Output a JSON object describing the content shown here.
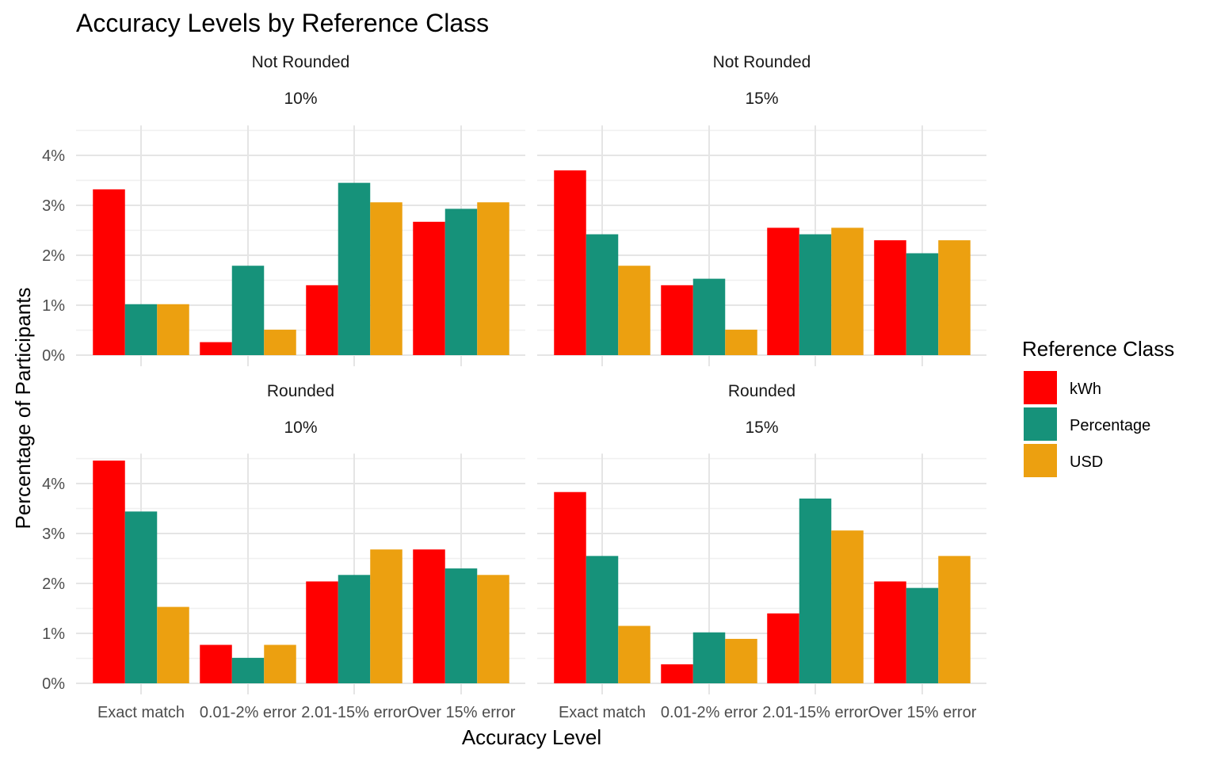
{
  "chart_data": {
    "type": "bar",
    "title": "Accuracy Levels by Reference Class",
    "xlabel": "Accuracy Level",
    "ylabel": "Percentage of Participants",
    "categories": [
      "Exact match",
      "0.01-2% error",
      "2.01-15% error",
      "Over 15% error"
    ],
    "y_ticks": [
      "0%",
      "1%",
      "2%",
      "3%",
      "4%"
    ],
    "ylim": [
      0,
      4.6
    ],
    "grid": true,
    "legend": {
      "title": "Reference Class",
      "position": "right",
      "entries": [
        "kWh",
        "Percentage",
        "USD"
      ]
    },
    "series_colors": [
      "#ff0000",
      "#16927a",
      "#eca010"
    ],
    "panels": [
      {
        "row_label": "Not Rounded",
        "col_label": "10%",
        "series": [
          {
            "name": "kWh",
            "values": [
              3.32,
              0.26,
              1.4,
              2.67
            ]
          },
          {
            "name": "Percentage",
            "values": [
              1.02,
              1.79,
              3.45,
              2.93
            ]
          },
          {
            "name": "USD",
            "values": [
              1.02,
              0.51,
              3.06,
              3.06
            ]
          }
        ]
      },
      {
        "row_label": "Not Rounded",
        "col_label": "15%",
        "series": [
          {
            "name": "kWh",
            "values": [
              3.7,
              1.4,
              2.55,
              2.3
            ]
          },
          {
            "name": "Percentage",
            "values": [
              2.42,
              1.53,
              2.42,
              2.04
            ]
          },
          {
            "name": "USD",
            "values": [
              1.79,
              0.51,
              2.55,
              2.3
            ]
          }
        ]
      },
      {
        "row_label": "Rounded",
        "col_label": "10%",
        "series": [
          {
            "name": "kWh",
            "values": [
              4.46,
              0.77,
              2.04,
              2.68
            ]
          },
          {
            "name": "Percentage",
            "values": [
              3.44,
              0.51,
              2.17,
              2.3
            ]
          },
          {
            "name": "USD",
            "values": [
              1.53,
              0.77,
              2.68,
              2.17
            ]
          }
        ]
      },
      {
        "row_label": "Rounded",
        "col_label": "15%",
        "series": [
          {
            "name": "kWh",
            "values": [
              3.83,
              0.38,
              1.4,
              2.04
            ]
          },
          {
            "name": "Percentage",
            "values": [
              2.55,
              1.02,
              3.7,
              1.91
            ]
          },
          {
            "name": "USD",
            "values": [
              1.15,
              0.89,
              3.06,
              2.55
            ]
          }
        ]
      }
    ]
  }
}
